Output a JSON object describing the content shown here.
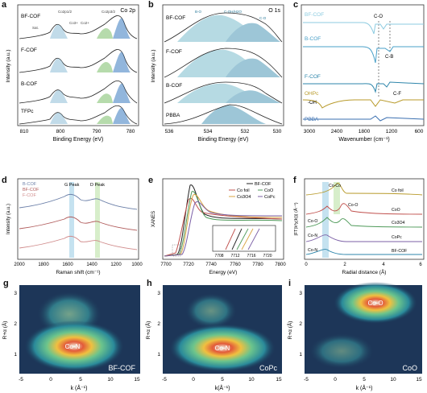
{
  "panels": {
    "a": {
      "letter": "a",
      "corner_label": "Co 2p",
      "ylabel": "Intensity (a.u.)",
      "xlabel": "Binding Energy (eV)",
      "xticks": [
        "810",
        "800",
        "790",
        "780"
      ],
      "samples": [
        "BF-COF",
        "F-COF",
        "B-COF",
        "TFPc"
      ],
      "peak_labels": [
        "Co2p1/2",
        "Co2p3/2",
        "Sat.",
        "Co3+",
        "Co2+"
      ]
    },
    "b": {
      "letter": "b",
      "corner_label": "O 1s",
      "ylabel": "Intensity (a.u.)",
      "xlabel": "Binding Energy (eV)",
      "xticks": [
        "536",
        "534",
        "532",
        "530"
      ],
      "samples": [
        "BF-COF",
        "F-COF",
        "B-COF",
        "PBBA"
      ],
      "peak_labels": [
        "B-O",
        "C-OH/H2O",
        "C-O"
      ]
    },
    "c": {
      "letter": "c",
      "xlabel": "Wavenumber (cm⁻¹)",
      "xticks": [
        "3000",
        "2400",
        "1800",
        "1200",
        "600"
      ],
      "samples": [
        "BF-COF",
        "B-COF",
        "F-COF",
        "OHPc",
        "PBBA"
      ],
      "annotations": [
        "C-O",
        "C-B",
        "C-F",
        "-OH"
      ],
      "colors": [
        "#8ccbe0",
        "#4aa0c8",
        "#2e86ab",
        "#b89a2a",
        "#3a6fb0"
      ]
    },
    "d": {
      "letter": "d",
      "ylabel": "Intensity (a.u.)",
      "xlabel": "Raman shift (cm⁻¹)",
      "xticks": [
        "2000",
        "1800",
        "1600",
        "1400",
        "1200",
        "1000"
      ],
      "legend": [
        "B-COF",
        "BF-COF",
        "F-COF"
      ],
      "peak_labels": [
        "G Peak",
        "D Peak"
      ],
      "colors": [
        "#6b7fa8",
        "#b05a5a",
        "#d08a8a"
      ]
    },
    "e": {
      "letter": "e",
      "ylabel": "XANES",
      "xlabel": "Energy (eV)",
      "xticks": [
        "7700",
        "7720",
        "7740",
        "7760",
        "7780",
        "7800"
      ],
      "legend": [
        "BF-COF",
        "Co foil",
        "CoO",
        "Co3O4",
        "CoPc"
      ],
      "inset_xticks": [
        "7708",
        "7712",
        "7716",
        "7720"
      ],
      "colors": [
        "#222222",
        "#c0504d",
        "#4f9a5a",
        "#d9a441",
        "#7b5fa6"
      ]
    },
    "f": {
      "letter": "f",
      "ylabel": "|FT(k³χ(k))| (Å⁻⁴)",
      "xlabel": "Radial distance (Å)",
      "xticks": [
        "0",
        "2",
        "4",
        "6"
      ],
      "labels_left": [
        "Co-Co",
        "Co-O",
        "Co-O",
        "Co-N",
        "Co-N"
      ],
      "labels_right": [
        "Co foil",
        "CoO",
        "Co3O4",
        "CoPc",
        "BF-COF"
      ]
    },
    "g": {
      "letter": "g",
      "ylabel": "R+α (Å)",
      "xlabel": "k (Å⁻¹)",
      "xticks": [
        "-5",
        "0",
        "5",
        "10",
        "15"
      ],
      "yticks": [
        "3",
        "2",
        "1"
      ],
      "feature": "Co-N",
      "sample": "BF-COF"
    },
    "h": {
      "letter": "h",
      "ylabel": "R+α (Å)",
      "xlabel": "k(Å⁻¹)",
      "xticks": [
        "-5",
        "0",
        "5",
        "10",
        "15"
      ],
      "yticks": [
        "3",
        "2",
        "1"
      ],
      "feature": "Co-N",
      "sample": "CoPc"
    },
    "i": {
      "letter": "i",
      "ylabel": "R+α (Å)",
      "xlabel": "k (Å⁻¹)",
      "xticks": [
        "-5",
        "0",
        "5",
        "10",
        "15"
      ],
      "yticks": [
        "3",
        "2",
        "1"
      ],
      "feature": "Co-O",
      "sample": "CoO"
    }
  }
}
